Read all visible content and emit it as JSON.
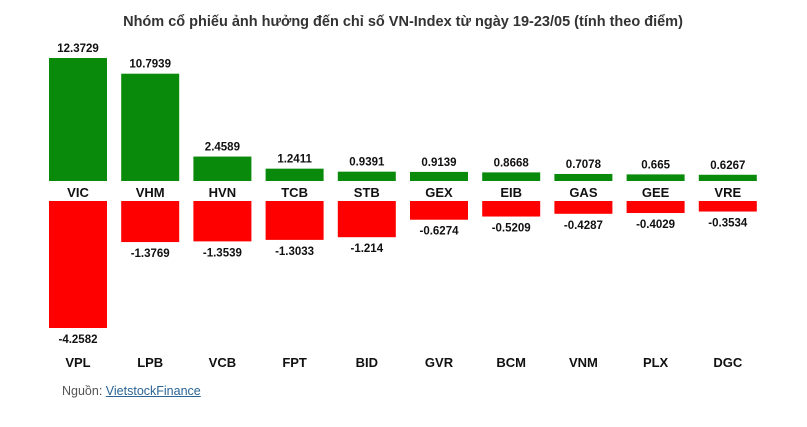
{
  "chart_data": {
    "type": "bar",
    "title": "Nhóm cổ phiếu ảnh hưởng đến chỉ số VN-Index từ ngày 19-23/05 (tính theo điểm)",
    "positive": {
      "categories": [
        "VIC",
        "VHM",
        "HVN",
        "TCB",
        "STB",
        "GEX",
        "EIB",
        "GAS",
        "GEE",
        "VRE"
      ],
      "labels": [
        "12.3729",
        "10.7939",
        "2.4589",
        "1.2411",
        "0.9391",
        "0.9139",
        "0.8668",
        "0.7078",
        "0.665",
        "0.6267"
      ],
      "values": [
        12.3729,
        10.7939,
        2.4589,
        1.2411,
        0.9391,
        0.9139,
        0.8668,
        0.7078,
        0.665,
        0.6267
      ],
      "color": "#0a8a0a"
    },
    "negative": {
      "categories": [
        "VPL",
        "LPB",
        "VCB",
        "FPT",
        "BID",
        "GVR",
        "BCM",
        "VNM",
        "PLX",
        "DGC"
      ],
      "labels": [
        "-4.2582",
        "-1.3769",
        "-1.3539",
        "-1.3033",
        "-1.214",
        "-0.6274",
        "-0.5209",
        "-0.4287",
        "-0.4029",
        "-0.3534"
      ],
      "values": [
        -4.2582,
        -1.3769,
        -1.3539,
        -1.3033,
        -1.214,
        -0.6274,
        -0.5209,
        -0.4287,
        -0.4029,
        -0.3534
      ],
      "color": "#ff0000"
    }
  },
  "source": {
    "prefix": "Nguồn: ",
    "link": "VietstockFinance"
  }
}
